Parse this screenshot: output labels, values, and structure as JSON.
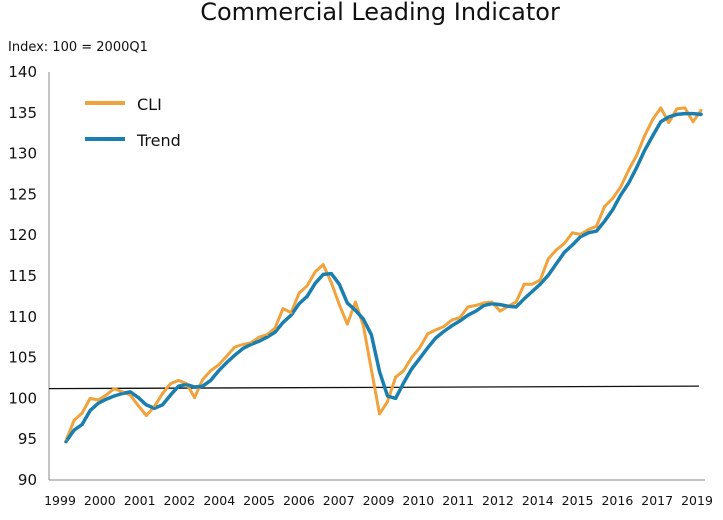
{
  "chart_data": {
    "type": "line",
    "title": "Commercial Leading Indicator",
    "ylabel": "Index: 100 = 2000Q1",
    "xlabel": "",
    "ylim": [
      90,
      140
    ],
    "yticks": [
      90,
      95,
      100,
      105,
      110,
      115,
      120,
      125,
      130,
      135,
      140
    ],
    "xticks": [
      "1999",
      "2000",
      "2001",
      "2002",
      "2004",
      "2005",
      "2006",
      "2007",
      "2009",
      "2010",
      "2011",
      "2012",
      "2014",
      "2015",
      "2016",
      "2017",
      "2019"
    ],
    "grid": false,
    "legend_position": "top-left",
    "colors": {
      "CLI": "#F0A23C",
      "Trend": "#1A7FAE",
      "reference": "#111111"
    },
    "series": [
      {
        "name": "CLI",
        "values": [
          94.8,
          97.3,
          98.2,
          100.0,
          99.8,
          100.4,
          101.2,
          100.8,
          100.4,
          99.1,
          97.9,
          99.0,
          100.6,
          101.8,
          102.2,
          101.8,
          100.1,
          102.3,
          103.4,
          104.1,
          105.2,
          106.3,
          106.6,
          106.8,
          107.5,
          107.8,
          108.6,
          111.0,
          110.5,
          112.9,
          113.8,
          115.5,
          116.4,
          114.2,
          111.5,
          109.1,
          111.8,
          108.9,
          103.5,
          98.1,
          99.6,
          102.6,
          103.4,
          105.0,
          106.2,
          107.9,
          108.4,
          108.8,
          109.6,
          109.9,
          111.2,
          111.4,
          111.7,
          111.8,
          110.7,
          111.3,
          111.8,
          114.0,
          114.0,
          114.5,
          117.1,
          118.2,
          119.0,
          120.3,
          120.1,
          120.7,
          121.1,
          123.5,
          124.5,
          125.9,
          128.0,
          129.8,
          132.2,
          134.2,
          135.6,
          133.8,
          135.5,
          135.6,
          133.9,
          135.3
        ],
        "labels": [
          "CLI"
        ]
      },
      {
        "name": "Trend",
        "values": [
          94.7,
          96.1,
          96.8,
          98.5,
          99.4,
          99.9,
          100.3,
          100.6,
          100.8,
          100.1,
          99.2,
          98.8,
          99.2,
          100.4,
          101.5,
          101.7,
          101.4,
          101.5,
          102.2,
          103.4,
          104.4,
          105.3,
          106.1,
          106.6,
          107.0,
          107.5,
          108.1,
          109.3,
          110.2,
          111.6,
          112.5,
          114.1,
          115.2,
          115.3,
          114.0,
          111.7,
          110.8,
          109.7,
          107.8,
          103.3,
          100.3,
          100.0,
          101.9,
          103.6,
          104.9,
          106.2,
          107.4,
          108.2,
          108.9,
          109.5,
          110.2,
          110.7,
          111.4,
          111.6,
          111.5,
          111.3,
          111.2,
          112.2,
          113.1,
          114.0,
          115.1,
          116.5,
          117.9,
          118.8,
          119.8,
          120.3,
          120.5,
          121.7,
          123.1,
          124.9,
          126.4,
          128.3,
          130.4,
          132.2,
          133.9,
          134.5,
          134.8,
          134.9,
          134.9,
          134.8
        ],
        "labels": [
          "Trend"
        ]
      }
    ],
    "reference_line": {
      "start": 101.2,
      "end": 101.5
    }
  }
}
